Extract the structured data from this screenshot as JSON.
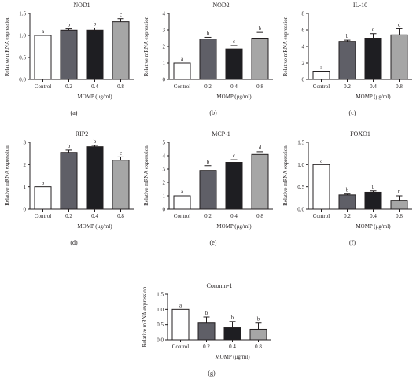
{
  "figure": {
    "x_common_label": "MOMP (μg/ml)",
    "y_common_label": "Relative mRNA expression"
  },
  "chart_data": [
    {
      "type": "bar",
      "panel_label": "(a)",
      "title": "NOD1",
      "categories": [
        "Control",
        "0.2",
        "0.4",
        "0.8"
      ],
      "values": [
        1.0,
        1.12,
        1.12,
        1.31
      ],
      "errors": [
        0.0,
        0.03,
        0.05,
        0.07
      ],
      "letters": [
        "a",
        "b",
        "b",
        "c"
      ],
      "ylim": [
        0,
        1.5
      ],
      "yticks": [
        0.0,
        0.5,
        1.0,
        1.5
      ],
      "ytick_labels": [
        "0.0",
        "0.5",
        "1.0",
        "1.5"
      ],
      "xlabel": "MOMP (μg/ml)",
      "ylabel": "Relative mRNA expression"
    },
    {
      "type": "bar",
      "panel_label": "(b)",
      "title": "NOD2",
      "categories": [
        "Control",
        "0.2",
        "0.4",
        "0.8"
      ],
      "values": [
        1.0,
        2.45,
        1.85,
        2.5
      ],
      "errors": [
        0.0,
        0.1,
        0.2,
        0.35
      ],
      "letters": [
        "a",
        "b",
        "c",
        "b"
      ],
      "ylim": [
        0,
        4
      ],
      "yticks": [
        0,
        1,
        2,
        3,
        4
      ],
      "ytick_labels": [
        "0",
        "1",
        "2",
        "3",
        "4"
      ],
      "xlabel": "MOMP (μg/ml)",
      "ylabel": "Relative mRNA expression"
    },
    {
      "type": "bar",
      "panel_label": "(c)",
      "title": "IL-10",
      "categories": [
        "Control",
        "0.2",
        "0.4",
        "0.8"
      ],
      "values": [
        1.0,
        4.6,
        5.0,
        5.4
      ],
      "errors": [
        0.0,
        0.15,
        0.55,
        0.75
      ],
      "letters": [
        "a",
        "b",
        "c",
        "d"
      ],
      "ylim": [
        0,
        8
      ],
      "yticks": [
        0,
        2,
        4,
        6,
        8
      ],
      "ytick_labels": [
        "0",
        "2",
        "4",
        "6",
        "8"
      ],
      "xlabel": "MOMP (μg/ml)",
      "ylabel": "Relative mRNA expression"
    },
    {
      "type": "bar",
      "panel_label": "(d)",
      "title": "RIP2",
      "categories": [
        "Control",
        "0.2",
        "0.4",
        "0.8"
      ],
      "values": [
        1.0,
        2.55,
        2.8,
        2.2
      ],
      "errors": [
        0.0,
        0.1,
        0.06,
        0.15
      ],
      "letters": [
        "a",
        "b",
        "b",
        "c"
      ],
      "ylim": [
        0,
        3
      ],
      "yticks": [
        0,
        1,
        2,
        3
      ],
      "ytick_labels": [
        "0",
        "1",
        "2",
        "3"
      ],
      "xlabel": "MOMP (μg/ml)",
      "ylabel": "Relative mRNA expression"
    },
    {
      "type": "bar",
      "panel_label": "(e)",
      "title": "MCP-1",
      "categories": [
        "Control",
        "0.2",
        "0.4",
        "0.8"
      ],
      "values": [
        1.0,
        2.9,
        3.5,
        4.1
      ],
      "errors": [
        0.0,
        0.35,
        0.2,
        0.2
      ],
      "letters": [
        "a",
        "b",
        "c",
        "d"
      ],
      "ylim": [
        0,
        5
      ],
      "yticks": [
        0,
        1,
        2,
        3,
        4,
        5
      ],
      "ytick_labels": [
        "0",
        "1",
        "2",
        "3",
        "4",
        "5"
      ],
      "xlabel": "MOMP (μg/ml)",
      "ylabel": "Relative mRNA expression"
    },
    {
      "type": "bar",
      "panel_label": "(f)",
      "title": "FOXO1",
      "categories": [
        "Control",
        "0.2",
        "0.4",
        "0.8"
      ],
      "values": [
        1.0,
        0.32,
        0.38,
        0.2
      ],
      "errors": [
        0.0,
        0.02,
        0.03,
        0.1
      ],
      "letters": [
        "a",
        "b",
        "b",
        "b"
      ],
      "ylim": [
        0,
        1.5
      ],
      "yticks": [
        0.0,
        0.5,
        1.0,
        1.5
      ],
      "ytick_labels": [
        "0.0",
        "0.5",
        "1.0",
        "1.5"
      ],
      "xlabel": "MOMP (μg/ml)",
      "ylabel": "Relative mRNA expression"
    },
    {
      "type": "bar",
      "panel_label": "(g)",
      "title": "Coronin-1",
      "categories": [
        "Control",
        "0.2",
        "0.4",
        "0.8"
      ],
      "values": [
        1.0,
        0.55,
        0.4,
        0.35
      ],
      "errors": [
        0.0,
        0.2,
        0.2,
        0.2
      ],
      "letters": [
        "a",
        "b",
        "b",
        "b"
      ],
      "ylim": [
        0,
        1.5
      ],
      "yticks": [
        0.0,
        0.5,
        1.0,
        1.5
      ],
      "ytick_labels": [
        "0.0",
        "0.5",
        "1.0",
        "1.5"
      ],
      "xlabel": "MOMP (μg/ml)",
      "ylabel": "Relative mRNA expression"
    }
  ],
  "colors": {
    "bar_fills": [
      "#ffffff",
      "#5f5f67",
      "#1e1e22",
      "#a6a6a6"
    ],
    "bar_stroke": "#231f20",
    "axis": "#231f20",
    "text": "#231f20"
  }
}
